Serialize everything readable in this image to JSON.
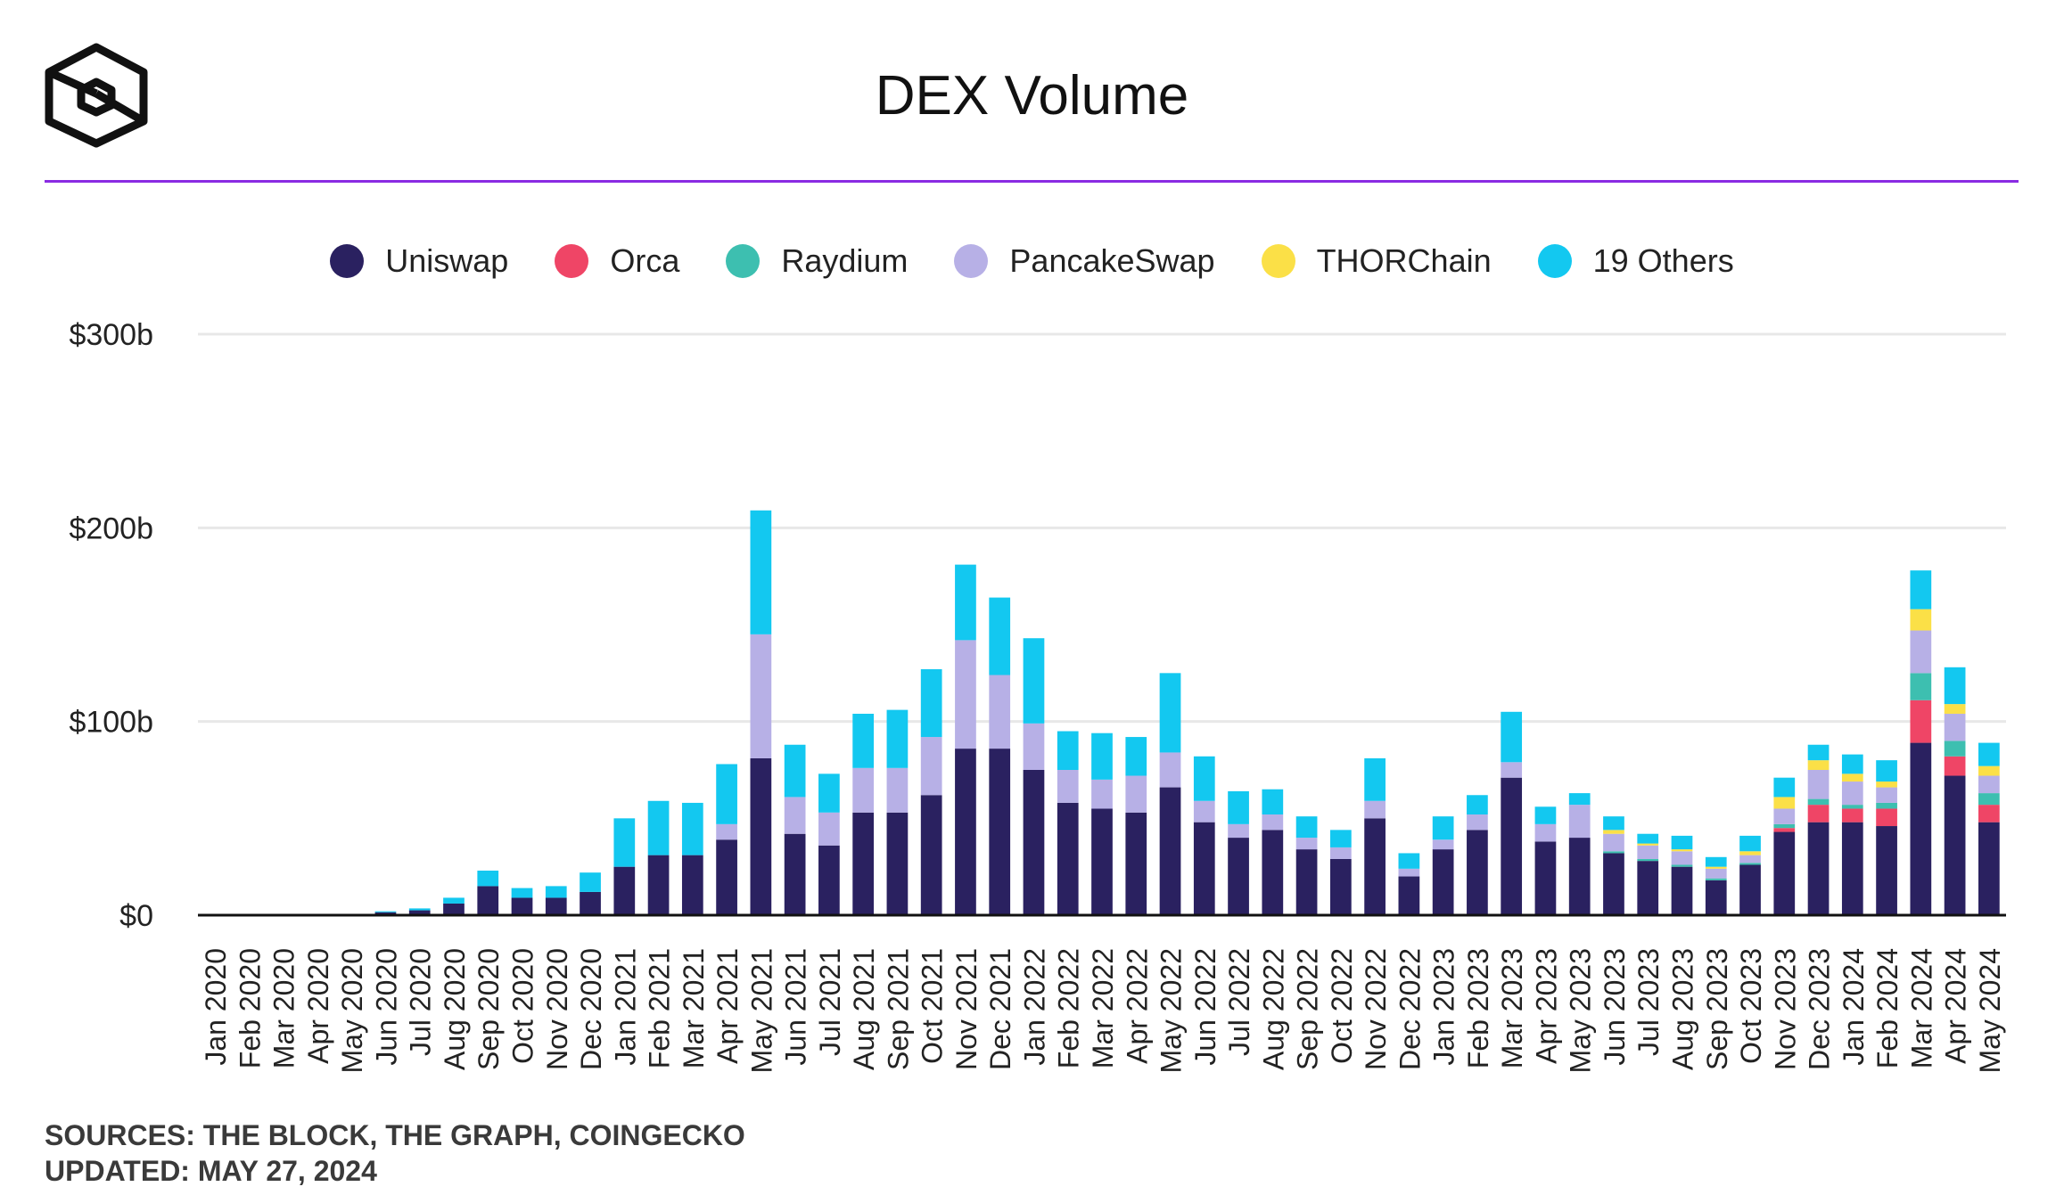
{
  "header": {
    "title": "DEX Volume"
  },
  "footer": {
    "sources": "SOURCES: THE BLOCK, THE GRAPH, COINGECKO",
    "updated": "UPDATED: MAY 27, 2024"
  },
  "colors": {
    "Uniswap": "#2a2160",
    "Orca": "#ef4566",
    "Raydium": "#3dbfb0",
    "PancakeSwap": "#b7b0e6",
    "THORChain": "#fbe047",
    "19 Others": "#13c8f0",
    "accent_rule": "#8a2be2"
  },
  "chart_data": {
    "type": "bar",
    "stacked": true,
    "title": "DEX Volume",
    "xlabel": "",
    "ylabel": "",
    "ylim": [
      0,
      300
    ],
    "yticks": [
      0,
      100,
      200,
      300
    ],
    "ytick_labels": [
      "$0",
      "$100b",
      "$200b",
      "$300b"
    ],
    "grid": true,
    "legend": "top-center",
    "categories": [
      "Jan 2020",
      "Feb 2020",
      "Mar 2020",
      "Apr 2020",
      "May 2020",
      "Jun 2020",
      "Jul 2020",
      "Aug 2020",
      "Sep 2020",
      "Oct 2020",
      "Nov 2020",
      "Dec 2020",
      "Jan 2021",
      "Feb 2021",
      "Mar 2021",
      "Apr 2021",
      "May 2021",
      "Jun 2021",
      "Jul 2021",
      "Aug 2021",
      "Sep 2021",
      "Oct 2021",
      "Nov 2021",
      "Dec 2021",
      "Jan 2022",
      "Feb 2022",
      "Mar 2022",
      "Apr 2022",
      "May 2022",
      "Jun 2022",
      "Jul 2022",
      "Aug 2022",
      "Sep 2022",
      "Oct 2022",
      "Nov 2022",
      "Dec 2022",
      "Jan 2023",
      "Feb 2023",
      "Mar 2023",
      "Apr 2023",
      "May 2023",
      "Jun 2023",
      "Jul 2023",
      "Aug 2023",
      "Sep 2023",
      "Oct 2023",
      "Nov 2023",
      "Dec 2023",
      "Jan 2024",
      "Feb 2024",
      "Mar 2024",
      "Apr 2024",
      "May 2024"
    ],
    "series": [
      {
        "name": "Uniswap",
        "values": [
          0.3,
          0.4,
          0.6,
          0.4,
          0.4,
          1.5,
          2.5,
          6,
          15,
          9,
          9,
          12,
          25,
          31,
          31,
          39,
          81,
          42,
          36,
          53,
          53,
          62,
          86,
          86,
          75,
          58,
          55,
          53,
          66,
          48,
          40,
          44,
          34,
          29,
          50,
          20,
          34,
          44,
          71,
          38,
          40,
          32,
          28,
          25,
          18,
          26,
          43,
          48,
          48,
          46,
          89,
          72,
          48
        ]
      },
      {
        "name": "Orca",
        "values": [
          0,
          0,
          0,
          0,
          0,
          0,
          0,
          0,
          0,
          0,
          0,
          0,
          0,
          0,
          0,
          0,
          0,
          0,
          0,
          0,
          0,
          0,
          0,
          0,
          0,
          0,
          0,
          0,
          0,
          0,
          0,
          0,
          0,
          0,
          0,
          0,
          0,
          0,
          0,
          0,
          0,
          0,
          0,
          0,
          0,
          0,
          2,
          9,
          7,
          9,
          22,
          10,
          9
        ]
      },
      {
        "name": "Raydium",
        "values": [
          0,
          0,
          0,
          0,
          0,
          0,
          0,
          0,
          0,
          0,
          0,
          0,
          0,
          0,
          0,
          0,
          0,
          0,
          0,
          0,
          0,
          0,
          0,
          0,
          0,
          0,
          0,
          0,
          0,
          0,
          0,
          0,
          0,
          0,
          0,
          0,
          0,
          0,
          0,
          0,
          0,
          1,
          1,
          1,
          1,
          1,
          2,
          3,
          2,
          3,
          14,
          8,
          6
        ]
      },
      {
        "name": "PancakeSwap",
        "values": [
          0,
          0,
          0,
          0,
          0,
          0,
          0,
          0,
          0,
          0,
          0,
          0,
          0,
          0,
          0,
          8,
          64,
          19,
          17,
          23,
          23,
          30,
          56,
          38,
          24,
          17,
          15,
          19,
          18,
          11,
          7,
          8,
          6,
          6,
          9,
          4,
          5,
          8,
          8,
          9,
          17,
          9,
          7,
          7,
          5,
          4,
          8,
          15,
          12,
          8,
          22,
          14,
          9
        ]
      },
      {
        "name": "THORChain",
        "values": [
          0,
          0,
          0,
          0,
          0,
          0,
          0,
          0,
          0,
          0,
          0,
          0,
          0,
          0,
          0,
          0,
          0,
          0,
          0,
          0,
          0,
          0,
          0,
          0,
          0,
          0,
          0,
          0,
          0,
          0,
          0,
          0,
          0,
          0,
          0,
          0,
          0,
          0,
          0,
          0,
          0,
          2,
          1,
          1,
          1,
          2,
          6,
          5,
          4,
          3,
          11,
          5,
          5
        ]
      },
      {
        "name": "19 Others",
        "values": [
          0,
          0,
          0,
          0,
          0,
          0.5,
          1,
          3,
          8,
          5,
          6,
          10,
          25,
          28,
          27,
          31,
          64,
          27,
          20,
          28,
          30,
          35,
          39,
          40,
          44,
          20,
          24,
          20,
          41,
          23,
          17,
          13,
          11,
          9,
          22,
          8,
          12,
          10,
          26,
          9,
          6,
          7,
          5,
          7,
          5,
          8,
          10,
          8,
          10,
          11,
          20,
          19,
          12
        ]
      }
    ]
  }
}
